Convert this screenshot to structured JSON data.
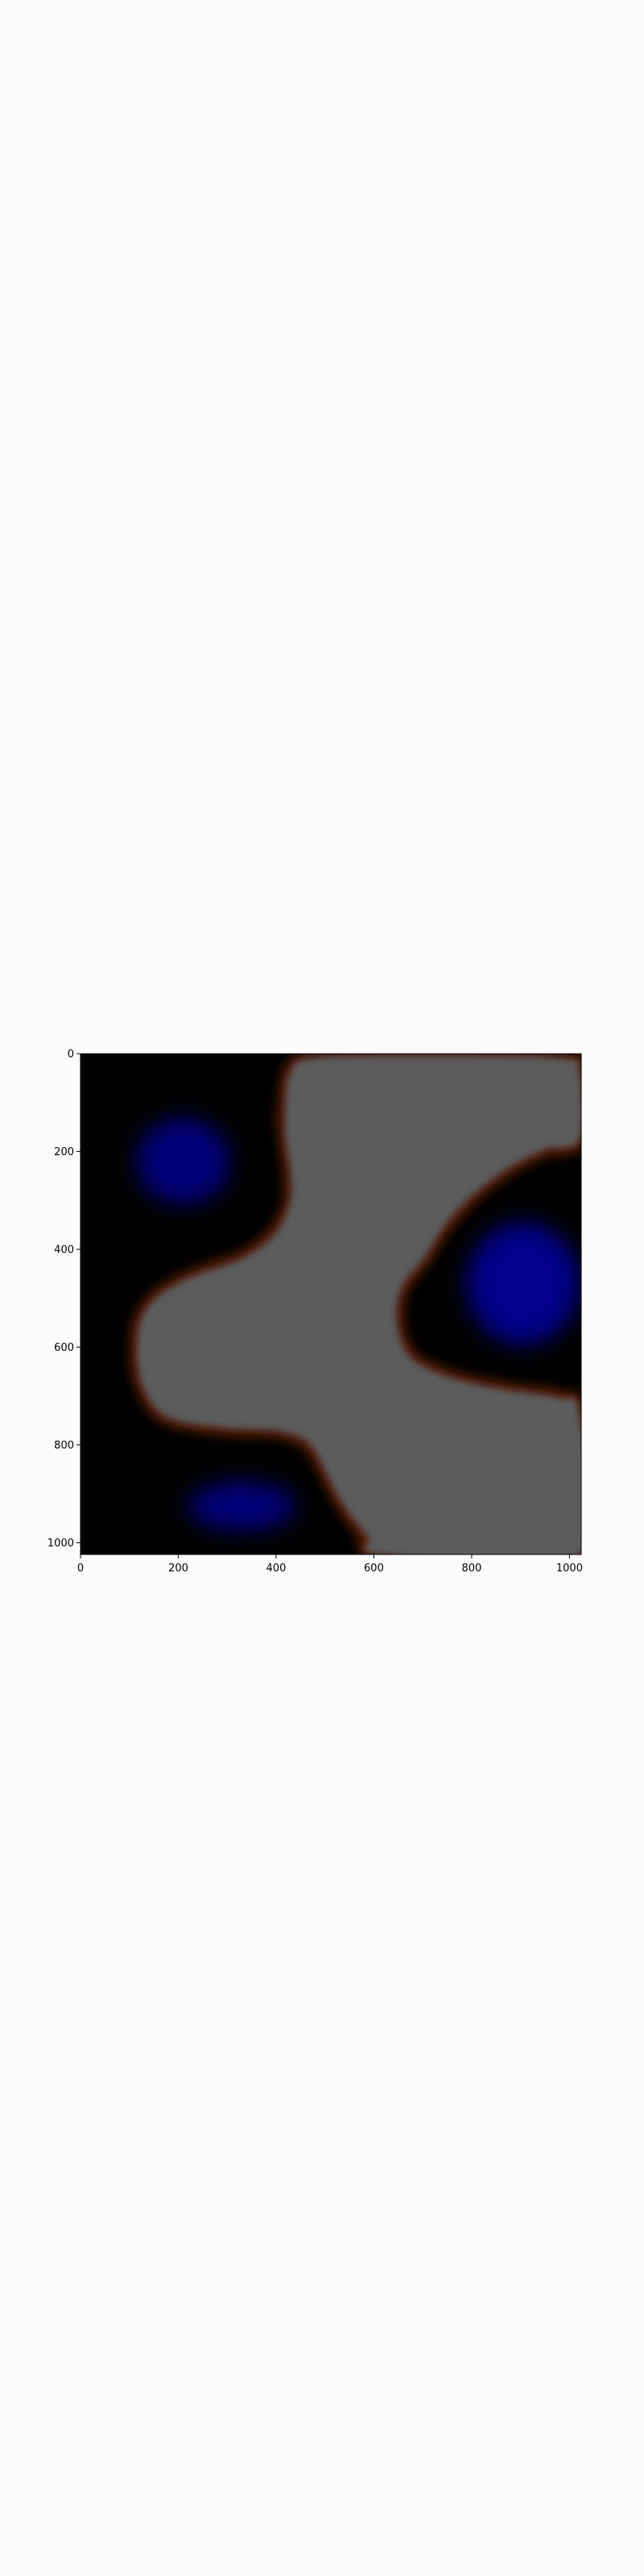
{
  "chart_data": {
    "type": "heatmap",
    "title": "",
    "xlabel": "",
    "ylabel": "",
    "xlim": [
      0,
      1024
    ],
    "ylim": [
      1024,
      0
    ],
    "x_ticks": [
      "0",
      "200",
      "400",
      "600",
      "800",
      "1000"
    ],
    "y_ticks": [
      "0",
      "200",
      "400",
      "600",
      "800",
      "1000"
    ],
    "x_tick_values": [
      0,
      200,
      400,
      600,
      800,
      1000
    ],
    "y_tick_values": [
      0,
      200,
      400,
      600,
      800,
      1000
    ],
    "grid": false,
    "legend": "none",
    "colors": {
      "background": "#000000",
      "region_gray": "#5c5c5c",
      "region_edge": "#7a2d10",
      "blob_blue": "#00007a"
    },
    "regions": [
      {
        "name": "gray-region",
        "color": "#5c5c5c",
        "outline": [
          [
            430,
            40
          ],
          [
            475,
            10
          ],
          [
            700,
            5
          ],
          [
            980,
            10
          ],
          [
            1020,
            40
          ],
          [
            1020,
            175
          ],
          [
            950,
            195
          ],
          [
            880,
            230
          ],
          [
            800,
            290
          ],
          [
            745,
            350
          ],
          [
            700,
            420
          ],
          [
            660,
            470
          ],
          [
            645,
            530
          ],
          [
            660,
            600
          ],
          [
            700,
            640
          ],
          [
            780,
            670
          ],
          [
            880,
            690
          ],
          [
            980,
            705
          ],
          [
            1020,
            740
          ],
          [
            1020,
            1024
          ],
          [
            620,
            1024
          ],
          [
            590,
            990
          ],
          [
            550,
            940
          ],
          [
            520,
            890
          ],
          [
            490,
            830
          ],
          [
            460,
            790
          ],
          [
            400,
            770
          ],
          [
            300,
            765
          ],
          [
            200,
            750
          ],
          [
            150,
            720
          ],
          [
            120,
            650
          ],
          [
            120,
            560
          ],
          [
            150,
            505
          ],
          [
            210,
            465
          ],
          [
            275,
            440
          ],
          [
            330,
            420
          ],
          [
            370,
            395
          ],
          [
            405,
            360
          ],
          [
            430,
            300
          ],
          [
            430,
            240
          ],
          [
            420,
            170
          ],
          [
            420,
            100
          ]
        ]
      }
    ],
    "blobs": [
      {
        "name": "blob-upper-left",
        "cx": 210,
        "cy": 220,
        "rx": 95,
        "ry": 88,
        "color": "#00007a"
      },
      {
        "name": "blob-right",
        "cx": 905,
        "cy": 470,
        "rx": 115,
        "ry": 125,
        "color": "#00008a"
      },
      {
        "name": "blob-bottom",
        "cx": 330,
        "cy": 925,
        "rx": 110,
        "ry": 50,
        "color": "#00007a"
      }
    ]
  }
}
